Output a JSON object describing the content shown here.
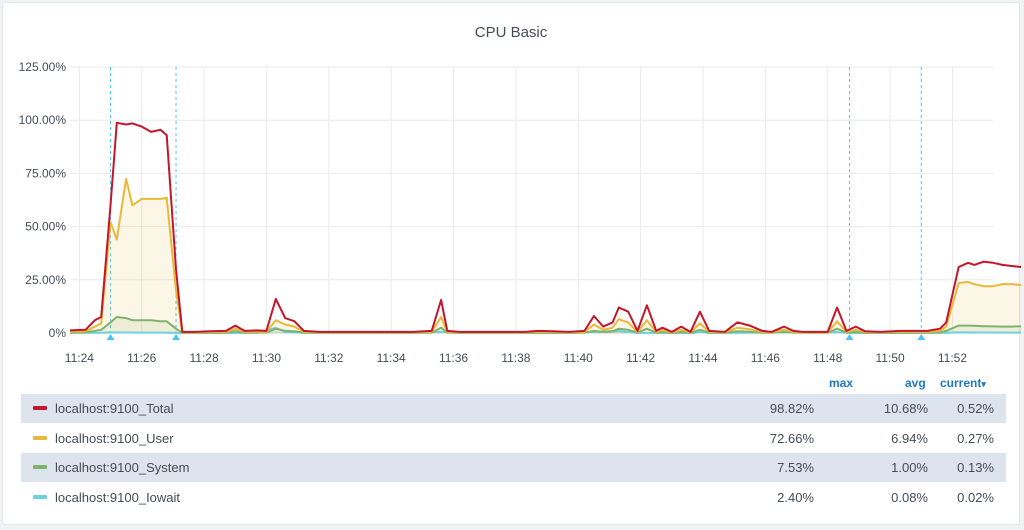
{
  "panel": {
    "title": "CPU Basic",
    "legend_headers": {
      "max": "max",
      "avg": "avg",
      "current": "current",
      "current_sort_icon": "▾"
    }
  },
  "legend": [
    {
      "name": "localhost:9100_Total",
      "max": "98.82%",
      "avg": "10.68%",
      "current": "0.52%",
      "color": "#c4162a"
    },
    {
      "name": "localhost:9100_User",
      "max": "72.66%",
      "avg": "6.94%",
      "current": "0.27%",
      "color": "#eab839"
    },
    {
      "name": "localhost:9100_System",
      "max": "7.53%",
      "avg": "1.00%",
      "current": "0.13%",
      "color": "#7eb26d"
    },
    {
      "name": "localhost:9100_Iowait",
      "max": "2.40%",
      "avg": "0.08%",
      "current": "0.02%",
      "color": "#6ed0e0"
    }
  ],
  "chart_data": {
    "type": "line",
    "title": "CPU Basic",
    "x_unit": "time (HH:MM)",
    "x_ticks": [
      "11:24",
      "11:26",
      "11:28",
      "11:30",
      "11:32",
      "11:34",
      "11:36",
      "11:38",
      "11:40",
      "11:42",
      "11:44",
      "11:46",
      "11:48",
      "11:50",
      "11:52"
    ],
    "y_ticks": [
      "0%",
      "25.00%",
      "50.00%",
      "75.00%",
      "100.00%",
      "125.00%"
    ],
    "ylim": [
      0,
      125
    ],
    "xlim": [
      "11:23.7",
      "11:53.3"
    ],
    "grid": true,
    "annotations": [
      {
        "type": "region",
        "from": "11:25",
        "to": "11:27.1"
      },
      {
        "type": "region",
        "from": "11:48.7",
        "to": "11:51"
      }
    ],
    "series": [
      {
        "name": "localhost:9100_Total",
        "color": "#c4162a",
        "fill": false,
        "points": [
          [
            0,
            1.2
          ],
          [
            0.5,
            1.5
          ],
          [
            0.8,
            6
          ],
          [
            1,
            7.5
          ],
          [
            1.3,
            60
          ],
          [
            1.5,
            98.8
          ],
          [
            1.8,
            98
          ],
          [
            2,
            98.5
          ],
          [
            2.3,
            97
          ],
          [
            2.6,
            94.5
          ],
          [
            2.9,
            95.5
          ],
          [
            3.1,
            93
          ],
          [
            3.4,
            30
          ],
          [
            3.6,
            0.5
          ],
          [
            4,
            0.5
          ],
          [
            4.5,
            0.8
          ],
          [
            5,
            1
          ],
          [
            5.3,
            3.5
          ],
          [
            5.6,
            1
          ],
          [
            6,
            1.2
          ],
          [
            6.3,
            1
          ],
          [
            6.6,
            16
          ],
          [
            6.9,
            7
          ],
          [
            7.2,
            5.5
          ],
          [
            7.5,
            1
          ],
          [
            8,
            0.5
          ],
          [
            9,
            0.5
          ],
          [
            10,
            0.5
          ],
          [
            11,
            0.5
          ],
          [
            11.6,
            1
          ],
          [
            11.9,
            15.5
          ],
          [
            12.1,
            1
          ],
          [
            12.5,
            0.5
          ],
          [
            13,
            0.5
          ],
          [
            14,
            0.5
          ],
          [
            14.6,
            0.5
          ],
          [
            15,
            1
          ],
          [
            15.5,
            0.8
          ],
          [
            16,
            0.5
          ],
          [
            16.5,
            1
          ],
          [
            16.8,
            8
          ],
          [
            17.1,
            3
          ],
          [
            17.4,
            5
          ],
          [
            17.6,
            12
          ],
          [
            17.9,
            10
          ],
          [
            18.2,
            1
          ],
          [
            18.5,
            13
          ],
          [
            18.8,
            1
          ],
          [
            19,
            2.5
          ],
          [
            19.3,
            0.5
          ],
          [
            19.6,
            3
          ],
          [
            19.9,
            0.5
          ],
          [
            20.2,
            10
          ],
          [
            20.5,
            1
          ],
          [
            21,
            0.5
          ],
          [
            21.4,
            5
          ],
          [
            21.8,
            3.5
          ],
          [
            22.2,
            1
          ],
          [
            22.5,
            0.5
          ],
          [
            22.9,
            3
          ],
          [
            23.2,
            1
          ],
          [
            23.5,
            0.5
          ],
          [
            24,
            0.5
          ],
          [
            24.3,
            0.5
          ],
          [
            24.6,
            12
          ],
          [
            24.9,
            1
          ],
          [
            25.2,
            3
          ],
          [
            25.5,
            0.8
          ],
          [
            26,
            0.5
          ],
          [
            26.6,
            1
          ],
          [
            27,
            1
          ],
          [
            27.5,
            1
          ],
          [
            27.9,
            2
          ],
          [
            28.1,
            5
          ],
          [
            28.5,
            31
          ],
          [
            28.8,
            33
          ],
          [
            29,
            32
          ],
          [
            29.3,
            33.5
          ],
          [
            29.6,
            33
          ],
          [
            29.9,
            32
          ],
          [
            30.2,
            31.5
          ],
          [
            30.5,
            31
          ],
          [
            30.8,
            38.5
          ],
          [
            31.1,
            1
          ],
          [
            31.5,
            0.6
          ],
          [
            32,
            1
          ],
          [
            32.5,
            0.6
          ],
          [
            33,
            0.5
          ],
          [
            34,
            0.5
          ],
          [
            35,
            0.52
          ]
        ]
      },
      {
        "name": "localhost:9100_User",
        "color": "#eab839",
        "fill": true,
        "points": [
          [
            0,
            0.5
          ],
          [
            0.5,
            0.8
          ],
          [
            0.8,
            3
          ],
          [
            1,
            4.5
          ],
          [
            1.3,
            52
          ],
          [
            1.5,
            44
          ],
          [
            1.8,
            72.5
          ],
          [
            2,
            60
          ],
          [
            2.3,
            63
          ],
          [
            2.6,
            63
          ],
          [
            2.9,
            63
          ],
          [
            3.1,
            63.5
          ],
          [
            3.4,
            20
          ],
          [
            3.6,
            0.3
          ],
          [
            4,
            0.3
          ],
          [
            4.5,
            0.4
          ],
          [
            5,
            0.5
          ],
          [
            5.3,
            2
          ],
          [
            5.6,
            0.5
          ],
          [
            6,
            0.6
          ],
          [
            6.3,
            0.5
          ],
          [
            6.6,
            6
          ],
          [
            6.9,
            4
          ],
          [
            7.2,
            3
          ],
          [
            7.5,
            0.5
          ],
          [
            8,
            0.3
          ],
          [
            9,
            0.3
          ],
          [
            10,
            0.3
          ],
          [
            11,
            0.3
          ],
          [
            11.6,
            0.5
          ],
          [
            11.9,
            7.5
          ],
          [
            12.1,
            0.5
          ],
          [
            12.5,
            0.3
          ],
          [
            13,
            0.3
          ],
          [
            14,
            0.3
          ],
          [
            14.6,
            0.3
          ],
          [
            15,
            0.5
          ],
          [
            15.5,
            0.4
          ],
          [
            16,
            0.3
          ],
          [
            16.5,
            0.5
          ],
          [
            16.8,
            4
          ],
          [
            17.1,
            1.5
          ],
          [
            17.4,
            2.5
          ],
          [
            17.6,
            6.5
          ],
          [
            17.9,
            5
          ],
          [
            18.2,
            0.5
          ],
          [
            18.5,
            6
          ],
          [
            18.8,
            0.5
          ],
          [
            19,
            1.2
          ],
          [
            19.3,
            0.3
          ],
          [
            19.6,
            1.5
          ],
          [
            19.9,
            0.3
          ],
          [
            20.2,
            4.5
          ],
          [
            20.5,
            0.5
          ],
          [
            21,
            0.3
          ],
          [
            21.4,
            2.5
          ],
          [
            21.8,
            1.8
          ],
          [
            22.2,
            0.5
          ],
          [
            22.5,
            0.3
          ],
          [
            22.9,
            1.5
          ],
          [
            23.2,
            0.5
          ],
          [
            23.5,
            0.3
          ],
          [
            24,
            0.3
          ],
          [
            24.3,
            0.3
          ],
          [
            24.6,
            5.5
          ],
          [
            24.9,
            0.5
          ],
          [
            25.2,
            1.5
          ],
          [
            25.5,
            0.4
          ],
          [
            26,
            0.3
          ],
          [
            26.6,
            0.5
          ],
          [
            27,
            0.5
          ],
          [
            27.5,
            0.5
          ],
          [
            27.9,
            1
          ],
          [
            28.1,
            3
          ],
          [
            28.5,
            23.5
          ],
          [
            28.8,
            24
          ],
          [
            29,
            23
          ],
          [
            29.3,
            22
          ],
          [
            29.6,
            22
          ],
          [
            29.9,
            23
          ],
          [
            30.2,
            23
          ],
          [
            30.5,
            22.5
          ],
          [
            30.8,
            17.5
          ],
          [
            31.1,
            0.5
          ],
          [
            31.5,
            0.3
          ],
          [
            32,
            0.5
          ],
          [
            32.5,
            0.3
          ],
          [
            33,
            0.3
          ],
          [
            34,
            0.3
          ],
          [
            35,
            0.27
          ]
        ]
      },
      {
        "name": "localhost:9100_System",
        "color": "#7eb26d",
        "fill": true,
        "points": [
          [
            0,
            0.2
          ],
          [
            0.5,
            0.3
          ],
          [
            0.8,
            1
          ],
          [
            1,
            1.5
          ],
          [
            1.3,
            5
          ],
          [
            1.5,
            7.5
          ],
          [
            1.8,
            7
          ],
          [
            2,
            6
          ],
          [
            2.3,
            6
          ],
          [
            2.6,
            6
          ],
          [
            2.9,
            5.5
          ],
          [
            3.1,
            5.5
          ],
          [
            3.4,
            2
          ],
          [
            3.6,
            0.1
          ],
          [
            4,
            0.1
          ],
          [
            4.5,
            0.1
          ],
          [
            5,
            0.2
          ],
          [
            5.3,
            0.8
          ],
          [
            5.6,
            0.2
          ],
          [
            6,
            0.2
          ],
          [
            6.3,
            0.2
          ],
          [
            6.6,
            2
          ],
          [
            6.9,
            1
          ],
          [
            7.2,
            0.8
          ],
          [
            7.5,
            0.2
          ],
          [
            8,
            0.1
          ],
          [
            9,
            0.1
          ],
          [
            10,
            0.1
          ],
          [
            11,
            0.1
          ],
          [
            11.6,
            0.2
          ],
          [
            11.9,
            2.5
          ],
          [
            12.1,
            0.2
          ],
          [
            12.5,
            0.1
          ],
          [
            13,
            0.1
          ],
          [
            14,
            0.1
          ],
          [
            14.6,
            0.1
          ],
          [
            15,
            0.2
          ],
          [
            15.5,
            0.1
          ],
          [
            16,
            0.1
          ],
          [
            16.5,
            0.2
          ],
          [
            16.8,
            1
          ],
          [
            17.1,
            0.5
          ],
          [
            17.4,
            0.8
          ],
          [
            17.6,
            2
          ],
          [
            17.9,
            1.5
          ],
          [
            18.2,
            0.2
          ],
          [
            18.5,
            2
          ],
          [
            18.8,
            0.2
          ],
          [
            19,
            0.4
          ],
          [
            19.3,
            0.1
          ],
          [
            19.6,
            0.5
          ],
          [
            19.9,
            0.1
          ],
          [
            20.2,
            1.5
          ],
          [
            20.5,
            0.2
          ],
          [
            21,
            0.1
          ],
          [
            21.4,
            0.8
          ],
          [
            21.8,
            0.6
          ],
          [
            22.2,
            0.2
          ],
          [
            22.5,
            0.1
          ],
          [
            22.9,
            0.5
          ],
          [
            23.2,
            0.2
          ],
          [
            23.5,
            0.1
          ],
          [
            24,
            0.1
          ],
          [
            24.3,
            0.1
          ],
          [
            24.6,
            2
          ],
          [
            24.9,
            0.2
          ],
          [
            25.2,
            0.5
          ],
          [
            25.5,
            0.1
          ],
          [
            26,
            0.1
          ],
          [
            26.6,
            0.2
          ],
          [
            27,
            0.2
          ],
          [
            27.5,
            0.2
          ],
          [
            27.9,
            0.3
          ],
          [
            28.1,
            1
          ],
          [
            28.5,
            3.5
          ],
          [
            28.8,
            3.5
          ],
          [
            29,
            3.4
          ],
          [
            29.3,
            3.2
          ],
          [
            29.6,
            3.1
          ],
          [
            29.9,
            3
          ],
          [
            30.2,
            3
          ],
          [
            30.5,
            3.2
          ],
          [
            30.8,
            5.5
          ],
          [
            31.1,
            0.2
          ],
          [
            31.5,
            0.1
          ],
          [
            32,
            0.2
          ],
          [
            32.5,
            0.1
          ],
          [
            33,
            0.1
          ],
          [
            34,
            0.1
          ],
          [
            35,
            0.13
          ]
        ]
      },
      {
        "name": "localhost:9100_Iowait",
        "color": "#6ed0e0",
        "fill": true,
        "points": [
          [
            0,
            0.05
          ],
          [
            1,
            0.1
          ],
          [
            1.5,
            0.3
          ],
          [
            2,
            0.2
          ],
          [
            3,
            0.2
          ],
          [
            3.6,
            0.02
          ],
          [
            6,
            0.05
          ],
          [
            6.6,
            2.4
          ],
          [
            6.9,
            0.5
          ],
          [
            7.5,
            0.05
          ],
          [
            11,
            0.02
          ],
          [
            11.9,
            0.5
          ],
          [
            12.5,
            0.02
          ],
          [
            16,
            0.02
          ],
          [
            17.6,
            1
          ],
          [
            18.2,
            0.05
          ],
          [
            20,
            0.02
          ],
          [
            20.2,
            0.5
          ],
          [
            20.5,
            0.02
          ],
          [
            24.6,
            0.4
          ],
          [
            25,
            0.02
          ],
          [
            28,
            0.05
          ],
          [
            28.5,
            0.3
          ],
          [
            30.5,
            0.2
          ],
          [
            30.8,
            0.4
          ],
          [
            31.2,
            0.02
          ],
          [
            35,
            0.02
          ]
        ]
      }
    ]
  }
}
